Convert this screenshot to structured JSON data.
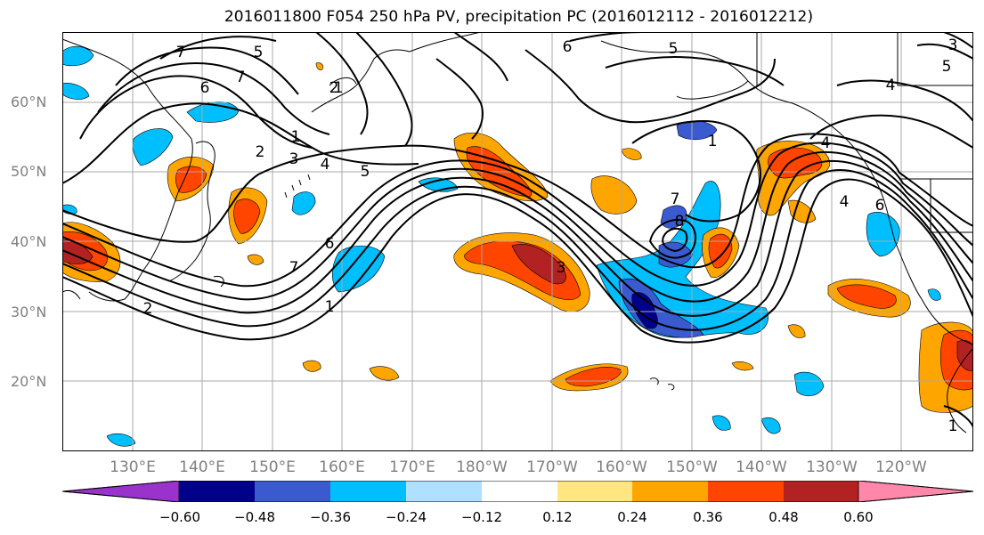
{
  "title": "2016011800 F054 250 hPa PV, precipitation PC (2016012112 - 2016012212)",
  "lat_labels": [
    "60°N",
    "50°N",
    "40°N",
    "30°N",
    "20°N"
  ],
  "lon_labels": [
    "130°E",
    "140°E",
    "150°E",
    "160°E",
    "170°E",
    "180°W",
    "170°W",
    "160°W",
    "150°W",
    "140°W",
    "130°W",
    "120°W"
  ],
  "colorbar": {
    "ticks": [
      "−0.60",
      "−0.48",
      "−0.36",
      "−0.24",
      "−0.12",
      "0.12",
      "0.24",
      "0.36",
      "0.48",
      "0.60"
    ],
    "colors": [
      "#9933cc",
      "#00008b",
      "#3a5bd0",
      "#00bfff",
      "#b0e0ff",
      "#ffffff",
      "#ffe680",
      "#ffa500",
      "#ff4500",
      "#b22222",
      "#ff88aa"
    ]
  },
  "contour_labels": [
    "7",
    "6",
    "5",
    "4",
    "3",
    "2",
    "1",
    "1",
    "2",
    "3",
    "4",
    "5",
    "6",
    "7",
    "1",
    "8",
    "7",
    "6",
    "5",
    "4",
    "1",
    "6",
    "7",
    "5",
    "4",
    "3",
    "1",
    "2"
  ]
}
